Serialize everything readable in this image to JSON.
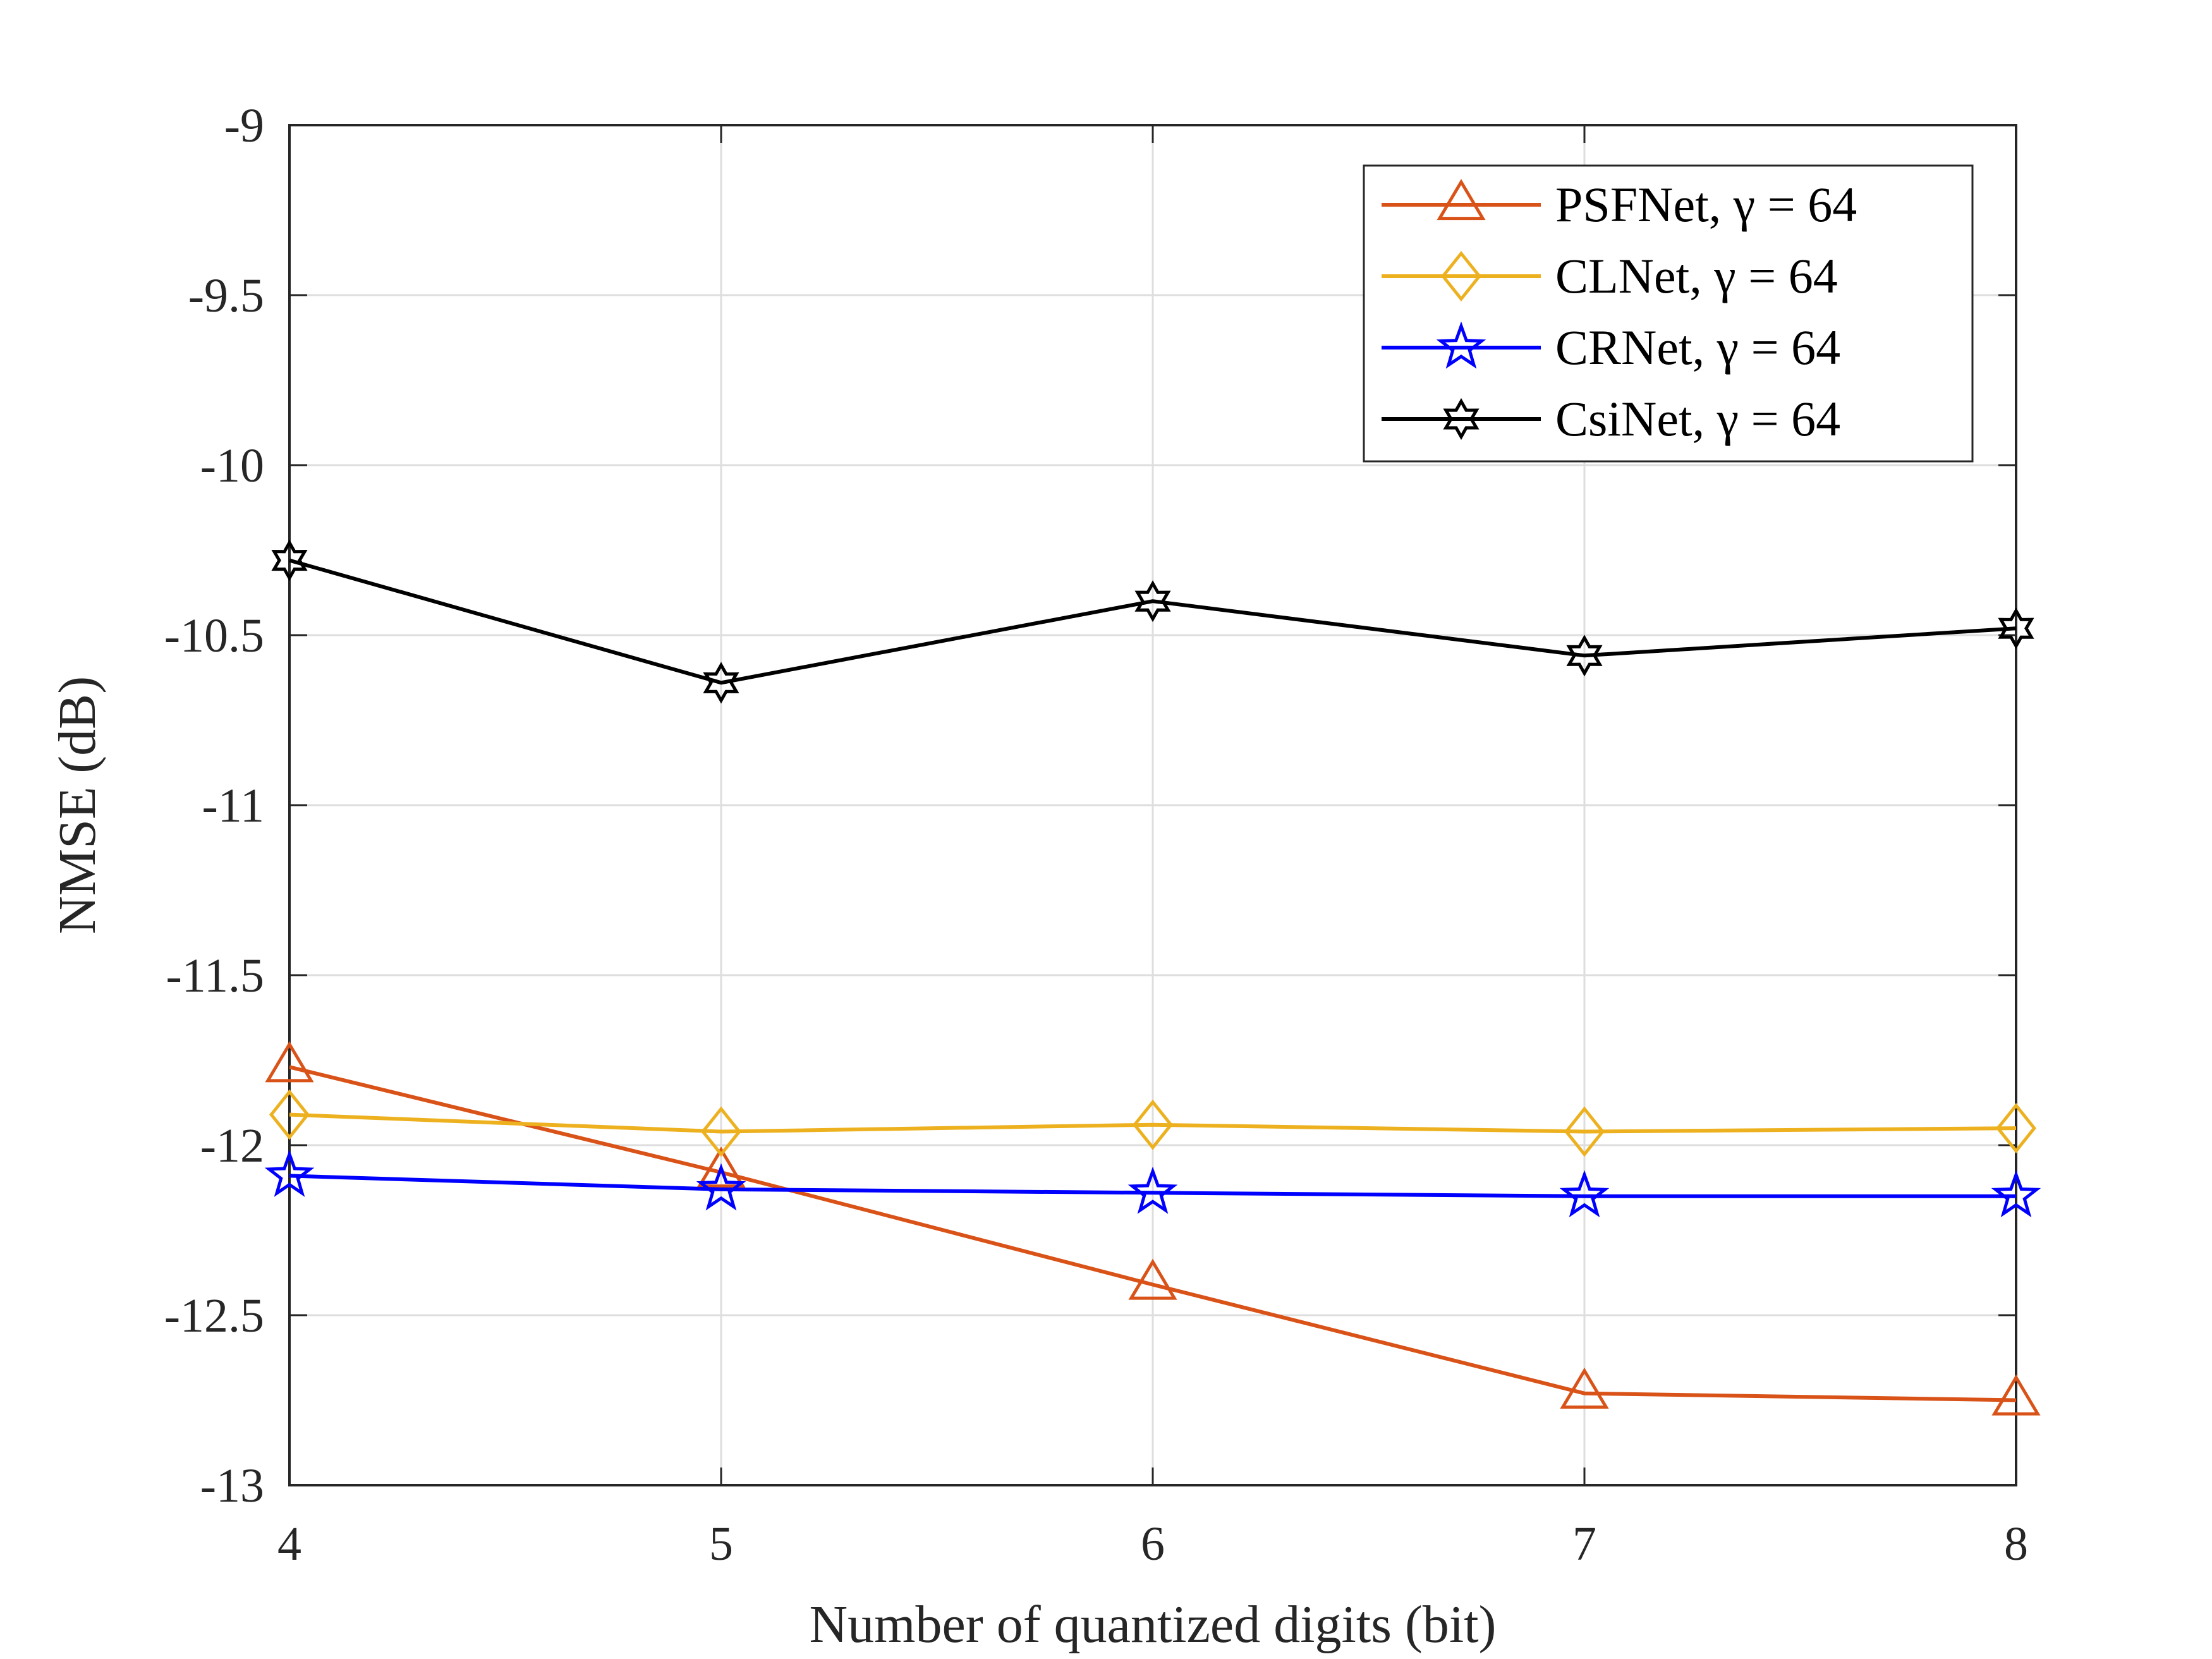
{
  "chart_data": {
    "type": "line",
    "title": "",
    "xlabel": "Number of quantized digits (bit)",
    "ylabel": "NMSE (dB)",
    "x": [
      4,
      5,
      6,
      7,
      8
    ],
    "x_ticks": [
      "4",
      "5",
      "6",
      "7",
      "8"
    ],
    "y_ticks": [
      "-9",
      "-9.5",
      "-10",
      "-10.5",
      "-11",
      "-11.5",
      "-12",
      "-12.5",
      "-13"
    ],
    "xlim": [
      4,
      8
    ],
    "ylim": [
      -13,
      -9
    ],
    "grid": true,
    "legend_position": "top-right",
    "series": [
      {
        "name": "PSFNet, γ = 64",
        "color": "#D95319",
        "marker": "triangle-icon",
        "values": [
          -11.77,
          -12.08,
          -12.41,
          -12.73,
          -12.75
        ]
      },
      {
        "name": "CLNet, γ = 64",
        "color": "#EDB120",
        "marker": "diamond-icon",
        "values": [
          -11.91,
          -11.96,
          -11.94,
          -11.96,
          -11.95
        ]
      },
      {
        "name": "CRNet, γ = 64",
        "color": "#0000FF",
        "marker": "star-icon",
        "values": [
          -12.09,
          -12.13,
          -12.14,
          -12.15,
          -12.15
        ]
      },
      {
        "name": "CsiNet, γ = 64",
        "color": "#000000",
        "marker": "hexagram-icon",
        "values": [
          -10.28,
          -10.64,
          -10.4,
          -10.56,
          -10.48
        ]
      }
    ]
  }
}
